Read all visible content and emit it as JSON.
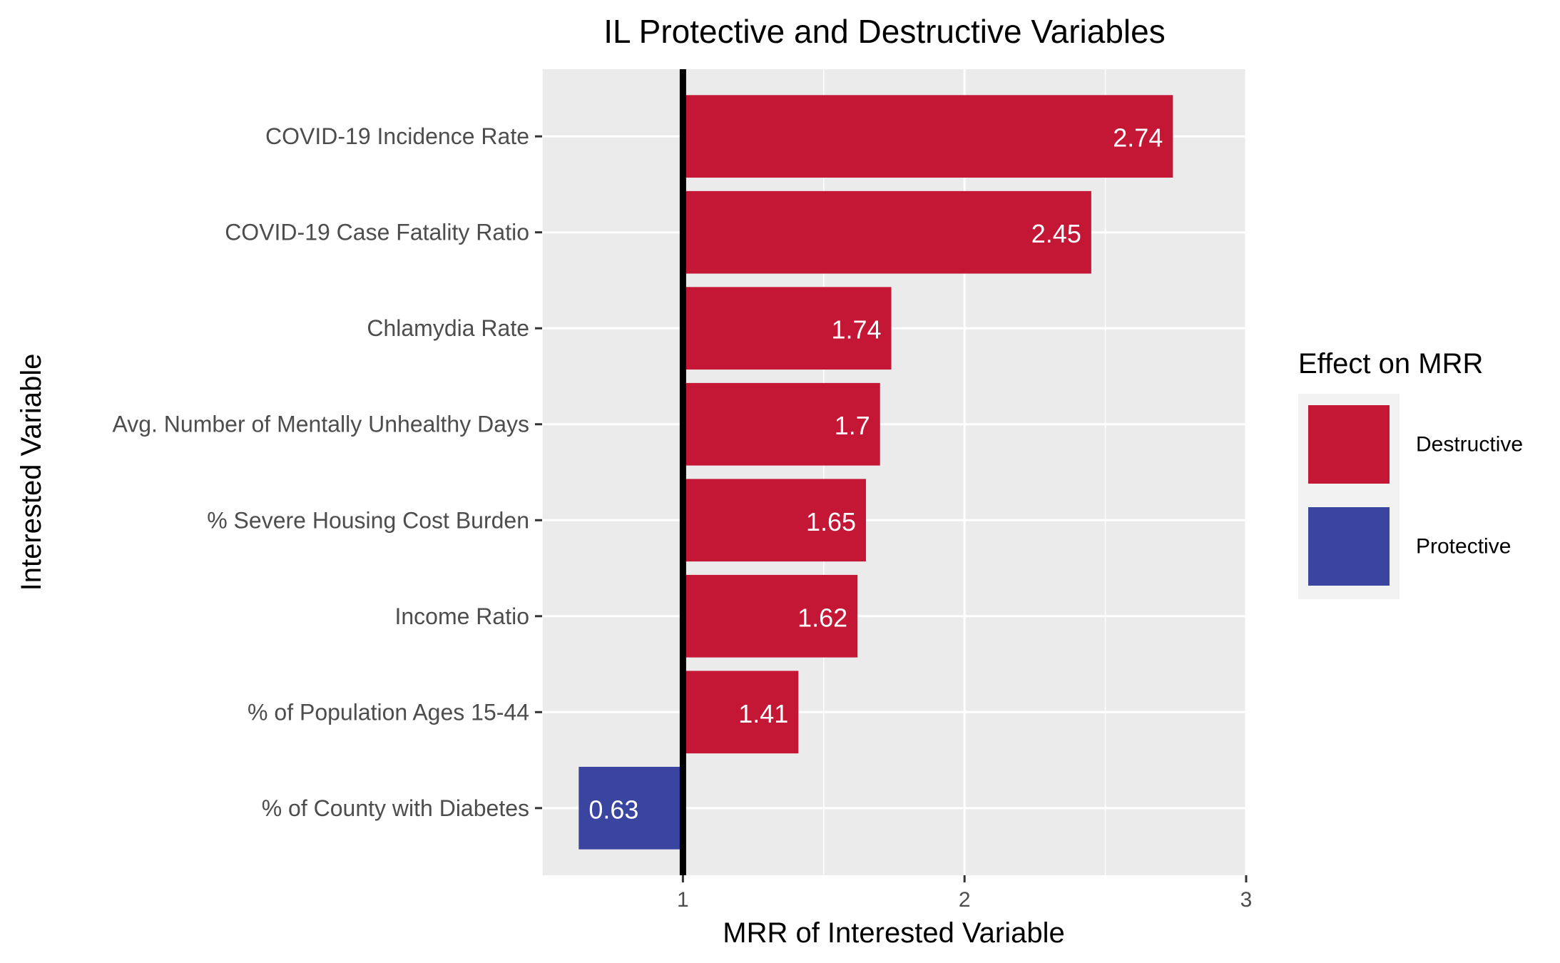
{
  "chart_data": {
    "type": "bar",
    "orientation": "horizontal",
    "title": "IL Protective and Destructive Variables",
    "xlabel": "MRR of Interested Variable",
    "ylabel": "Interested Variable",
    "xlim": [
      0.5,
      3.0
    ],
    "reference_line": 1,
    "x_ticks": [
      "1",
      "2",
      "3"
    ],
    "grid": true,
    "categories": [
      "COVID-19 Incidence Rate",
      "COVID-19 Case Fatality Ratio",
      "Chlamydia Rate",
      "Avg. Number of Mentally Unhealthy Days",
      "% Severe Housing Cost Burden",
      "Income Ratio",
      "% of Population Ages 15-44",
      "% of County with Diabetes"
    ],
    "values": [
      2.74,
      2.45,
      1.74,
      1.7,
      1.65,
      1.62,
      1.41,
      0.63
    ],
    "value_labels": [
      "2.74",
      "2.45",
      "1.74",
      "1.7",
      "1.65",
      "1.62",
      "1.41",
      "0.63"
    ],
    "effect": [
      "Destructive",
      "Destructive",
      "Destructive",
      "Destructive",
      "Destructive",
      "Destructive",
      "Destructive",
      "Protective"
    ],
    "legend": {
      "title": "Effect on MRR",
      "position": "right",
      "items": [
        {
          "label": "Destructive",
          "color": "#C41736"
        },
        {
          "label": "Protective",
          "color": "#3A45A0"
        }
      ]
    },
    "colors": {
      "Destructive": "#C41736",
      "Protective": "#3A45A0",
      "panel": "#EBEBEB",
      "grid": "#FFFFFF",
      "reference": "#000000"
    }
  }
}
